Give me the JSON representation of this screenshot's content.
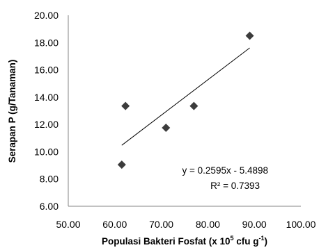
{
  "chart_data": {
    "type": "scatter",
    "title": "",
    "xlabel": "Populasi  Bakteri Fosfat (x 10",
    "xlabel_sup1": "5",
    "xlabel_mid": " cfu g",
    "xlabel_sup2": "-1",
    "xlabel_end": ")",
    "ylabel": "Serapan P (g/Tanaman)",
    "xlim": [
      50,
      100
    ],
    "ylim": [
      6,
      20
    ],
    "x_ticks": [
      "50.00",
      "60.00",
      "70.00",
      "80.00",
      "90.00",
      "100.00"
    ],
    "y_ticks": [
      "20.00",
      "18.00",
      "16.00",
      "14.00",
      "12.00",
      "10.00",
      "8.00",
      "6.00"
    ],
    "grid": false,
    "marker": "diamond",
    "marker_color": "#3c3c3c",
    "points": [
      {
        "x": 61.5,
        "y": 9.05
      },
      {
        "x": 62.3,
        "y": 13.35
      },
      {
        "x": 71.0,
        "y": 11.75
      },
      {
        "x": 77.0,
        "y": 13.35
      },
      {
        "x": 89.0,
        "y": 18.5
      }
    ],
    "trendline": {
      "slope": 0.2595,
      "intercept": -5.4898,
      "x_range": [
        61.5,
        89.0
      ]
    },
    "equation": "y = 0.2595x - 5.4898",
    "r_squared": "R² = 0.7393"
  }
}
